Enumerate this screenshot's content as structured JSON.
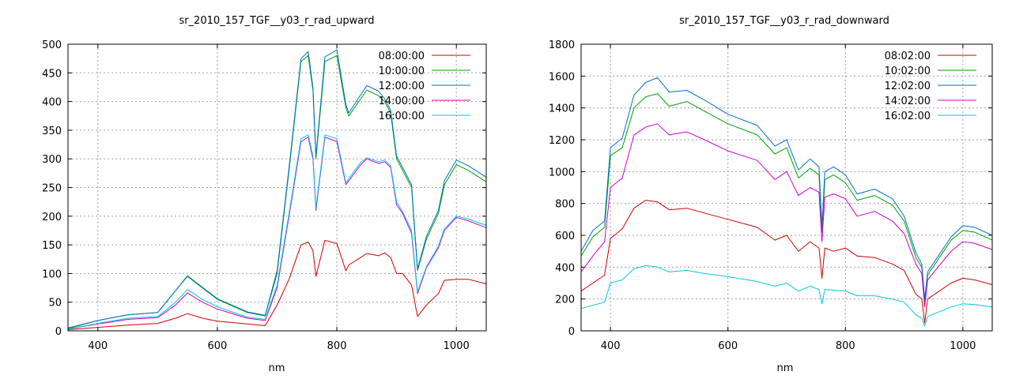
{
  "chart_data": [
    {
      "type": "line",
      "title": "sr_2010_157_TGF__y03_r_rad_upward",
      "xlabel": "nm",
      "ylabel": "",
      "xlim": [
        350,
        1050
      ],
      "ylim": [
        0,
        500
      ],
      "xticks": [
        400,
        600,
        800,
        1000
      ],
      "yticks": [
        0,
        50,
        100,
        150,
        200,
        250,
        300,
        350,
        400,
        450,
        500
      ],
      "grid": true,
      "legend_position": "top-right",
      "x": [
        350,
        400,
        450,
        500,
        530,
        550,
        575,
        600,
        650,
        680,
        700,
        720,
        740,
        752,
        760,
        765,
        780,
        800,
        815,
        820,
        840,
        850,
        870,
        880,
        890,
        900,
        910,
        925,
        935,
        950,
        970,
        980,
        1000,
        1020,
        1050
      ],
      "series": [
        {
          "name": "08:00:00",
          "color": "#cc0000",
          "values": [
            2,
            6,
            10,
            13,
            22,
            30,
            22,
            17,
            12,
            9,
            45,
            90,
            150,
            155,
            140,
            95,
            158,
            152,
            105,
            115,
            128,
            135,
            131,
            136,
            128,
            100,
            100,
            80,
            25,
            45,
            65,
            88,
            90,
            90,
            82
          ]
        },
        {
          "name": "10:00:00",
          "color": "#00a000",
          "values": [
            4,
            18,
            28,
            32,
            70,
            95,
            75,
            55,
            32,
            26,
            100,
            280,
            470,
            480,
            420,
            300,
            470,
            480,
            390,
            375,
            405,
            420,
            410,
            400,
            380,
            300,
            280,
            250,
            105,
            160,
            205,
            255,
            290,
            280,
            260
          ]
        },
        {
          "name": "12:00:00",
          "color": "#0070cc",
          "values": [
            5,
            18,
            28,
            32,
            70,
            96,
            76,
            56,
            33,
            27,
            105,
            285,
            475,
            487,
            425,
            305,
            478,
            490,
            395,
            380,
            412,
            428,
            418,
            405,
            385,
            305,
            285,
            255,
            108,
            165,
            210,
            262,
            298,
            288,
            268
          ]
        },
        {
          "name": "14:00:00",
          "color": "#cc00cc",
          "values": [
            3,
            12,
            20,
            23,
            45,
            66,
            50,
            38,
            22,
            18,
            75,
            200,
            330,
            338,
            300,
            210,
            338,
            330,
            255,
            262,
            290,
            300,
            292,
            295,
            285,
            220,
            205,
            170,
            65,
            110,
            145,
            175,
            198,
            192,
            180
          ]
        },
        {
          "name": "16:00:00",
          "color": "#00c8e0",
          "values": [
            3,
            13,
            22,
            25,
            50,
            72,
            55,
            42,
            24,
            20,
            80,
            205,
            335,
            342,
            305,
            215,
            342,
            335,
            258,
            266,
            294,
            302,
            295,
            298,
            288,
            225,
            208,
            175,
            68,
            112,
            148,
            178,
            200,
            195,
            184
          ]
        }
      ]
    },
    {
      "type": "line",
      "title": "sr_2010_157_TGF__y03_r_rad_downward",
      "xlabel": "nm",
      "ylabel": "",
      "xlim": [
        350,
        1050
      ],
      "ylim": [
        0,
        1800
      ],
      "xticks": [
        400,
        600,
        800,
        1000
      ],
      "yticks": [
        0,
        200,
        400,
        600,
        800,
        1000,
        1200,
        1400,
        1600,
        1800
      ],
      "grid": true,
      "legend_position": "top-right",
      "x": [
        350,
        370,
        390,
        400,
        420,
        440,
        460,
        480,
        500,
        530,
        560,
        600,
        650,
        680,
        700,
        720,
        740,
        755,
        760,
        765,
        780,
        800,
        820,
        850,
        880,
        900,
        920,
        930,
        935,
        940,
        960,
        980,
        1000,
        1020,
        1050
      ],
      "series": [
        {
          "name": "08:02:00",
          "color": "#cc0000",
          "values": [
            250,
            300,
            350,
            580,
            640,
            770,
            820,
            810,
            760,
            770,
            740,
            700,
            650,
            570,
            600,
            500,
            560,
            520,
            330,
            520,
            500,
            520,
            470,
            460,
            420,
            380,
            230,
            200,
            50,
            200,
            250,
            300,
            330,
            320,
            290
          ]
        },
        {
          "name": "10:02:00",
          "color": "#00a000",
          "values": [
            470,
            590,
            650,
            1100,
            1150,
            1400,
            1470,
            1490,
            1410,
            1440,
            1380,
            1300,
            1230,
            1110,
            1150,
            960,
            1020,
            980,
            620,
            950,
            980,
            930,
            820,
            850,
            790,
            690,
            460,
            400,
            180,
            350,
            460,
            570,
            630,
            620,
            570
          ]
        },
        {
          "name": "12:02:00",
          "color": "#0070cc",
          "values": [
            500,
            630,
            690,
            1150,
            1210,
            1480,
            1560,
            1590,
            1500,
            1510,
            1450,
            1360,
            1290,
            1160,
            1200,
            1010,
            1080,
            1030,
            660,
            1000,
            1030,
            980,
            860,
            890,
            830,
            720,
            490,
            420,
            200,
            370,
            480,
            590,
            660,
            650,
            600
          ]
        },
        {
          "name": "14:02:00",
          "color": "#cc00cc",
          "values": [
            370,
            470,
            560,
            900,
            960,
            1230,
            1280,
            1300,
            1230,
            1250,
            1200,
            1130,
            1070,
            950,
            1000,
            850,
            900,
            870,
            560,
            840,
            860,
            830,
            720,
            750,
            690,
            610,
            420,
            360,
            150,
            320,
            410,
            500,
            560,
            550,
            510
          ]
        },
        {
          "name": "16:02:00",
          "color": "#00c8e0",
          "values": [
            140,
            160,
            180,
            300,
            320,
            390,
            410,
            400,
            370,
            380,
            360,
            340,
            310,
            280,
            300,
            250,
            280,
            260,
            170,
            260,
            255,
            250,
            220,
            220,
            200,
            180,
            100,
            80,
            30,
            90,
            120,
            150,
            170,
            165,
            150
          ]
        }
      ]
    }
  ]
}
